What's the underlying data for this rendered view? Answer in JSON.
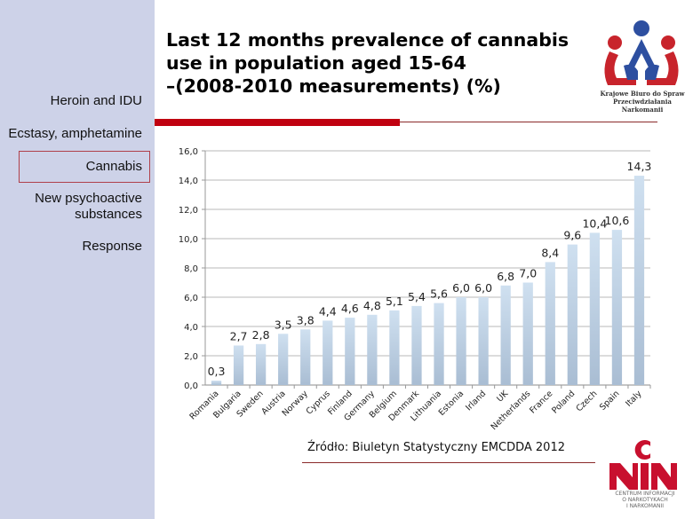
{
  "sidebar": {
    "items": [
      {
        "label": "Heroin and IDU"
      },
      {
        "label": "Ecstasy, amphetamine"
      },
      {
        "label": "Cannabis",
        "active": true
      },
      {
        "label_line1": "New psychoactive",
        "label_line2": "substances"
      },
      {
        "label": "Response"
      }
    ]
  },
  "header": {
    "title_line1": "Last 12 months prevalence of cannabis",
    "title_line2": "use in population aged 15-64",
    "title_line3": "–(2008-2010 measurements) (%)",
    "accent_color": "#c00010"
  },
  "logos": {
    "kbps_line1": "Krajowe Biuro do Spraw",
    "kbps_line2": "Przeciwdziałania Narkomanii",
    "cin_line1": "CENTRUM INFORMACJI",
    "cin_line2": "O NARKOTYKACH",
    "cin_line3": "I NARKOMANII"
  },
  "source": "Źródło:  Biuletyn Statystyczny EMCDDA  2012",
  "chart_data": {
    "type": "bar",
    "title": "Last 12 months prevalence of cannabis use in population aged 15-64 –(2008-2010 measurements) (%)",
    "categories": [
      "Romania",
      "Bulgaria",
      "Sweden",
      "Austria",
      "Norway",
      "Cyprus",
      "Finland",
      "Germany",
      "Belgium",
      "Denmark",
      "Lithuania",
      "Estonia",
      "Irland",
      "UK",
      "Netherlands",
      "France",
      "Poland",
      "Czech",
      "Spain",
      "Italy"
    ],
    "values": [
      0.3,
      2.7,
      2.8,
      3.5,
      3.8,
      4.4,
      4.6,
      4.8,
      5.1,
      5.4,
      5.6,
      6.0,
      6.0,
      6.8,
      7.0,
      8.4,
      9.6,
      10.4,
      10.6,
      14.3
    ],
    "data_labels": [
      "0,3",
      "2,7",
      "2,8",
      "3,5",
      "3,8",
      "4,4",
      "4,6",
      "4,8",
      "5,1",
      "5,4",
      "5,6",
      "6,0",
      "6,0",
      "6,8",
      "7,0",
      "8,4",
      "9,6",
      "10,4",
      "10,6",
      "14,3"
    ],
    "yticks": [
      "0,0",
      "2,0",
      "4,0",
      "6,0",
      "8,0",
      "10,0",
      "12,0",
      "14,0",
      "16,0"
    ],
    "ylim": [
      0,
      16
    ],
    "ystep": 2,
    "xlabel": "",
    "ylabel": "",
    "grid": true,
    "legend": "none",
    "bar_color": "#b8cde2"
  }
}
